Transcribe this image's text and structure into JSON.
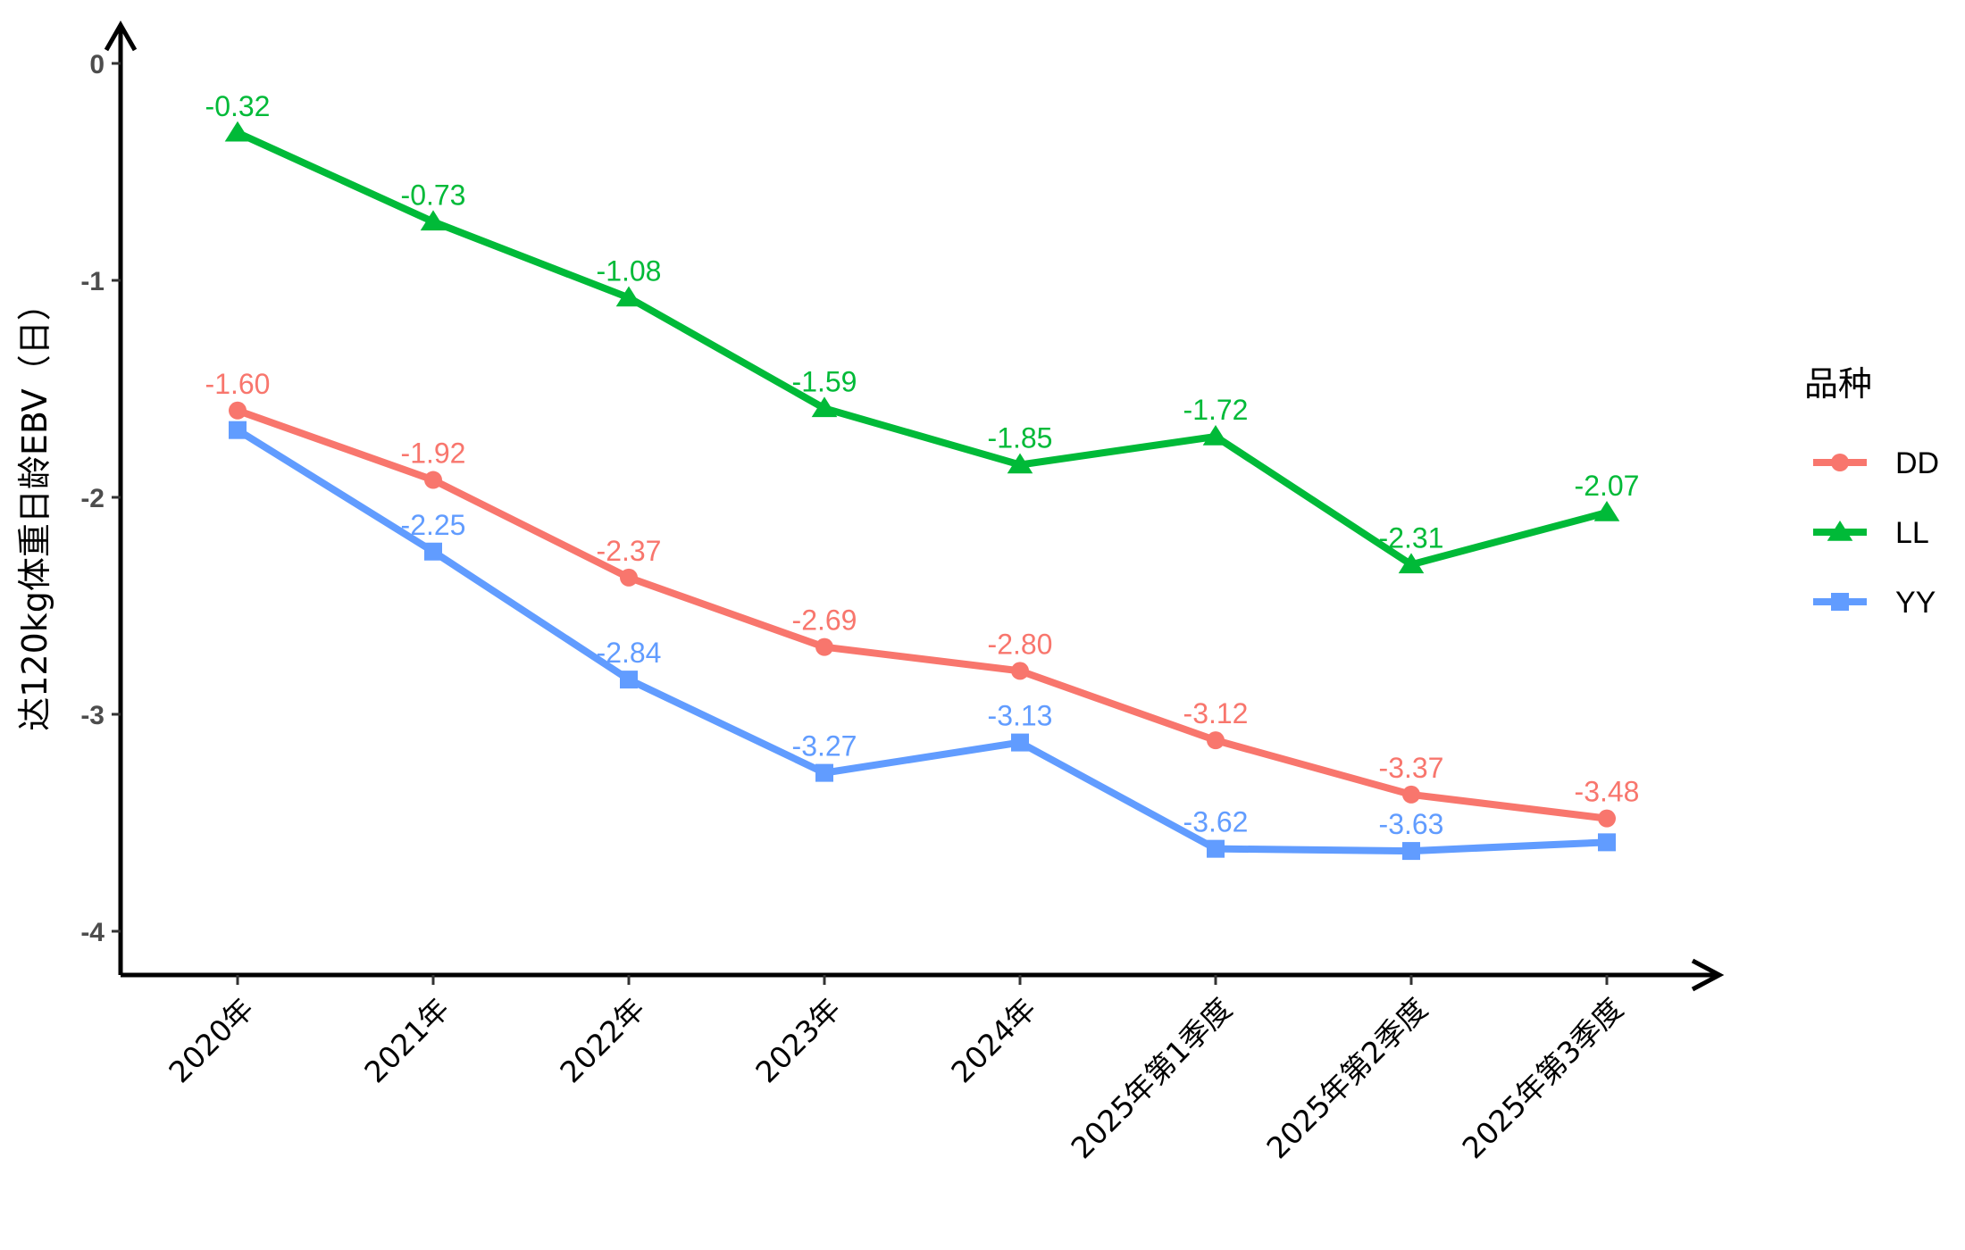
{
  "chart_data": {
    "type": "line",
    "title": "",
    "xlabel": "",
    "ylabel": "达120kg体重日龄EBV（日）",
    "categories": [
      "2020年",
      "2021年",
      "2022年",
      "2023年",
      "2024年",
      "2025年第1季度",
      "2025年第2季度",
      "2025年第3季度"
    ],
    "ylim": [
      -4.2,
      0.2
    ],
    "yticks": [
      0,
      -1,
      -2,
      -3,
      -4
    ],
    "grid": false,
    "legend": {
      "title": "品种",
      "position": "right"
    },
    "series": [
      {
        "name": "DD",
        "color": "#F8766D",
        "marker": "circle",
        "values": [
          -1.6,
          -1.92,
          -2.37,
          -2.69,
          -2.8,
          -3.12,
          -3.37,
          -3.48
        ],
        "labels": [
          "-1.60",
          "-1.92",
          "-2.37",
          "-2.69",
          "-2.80",
          "-3.12",
          "-3.37",
          "-3.48"
        ]
      },
      {
        "name": "LL",
        "color": "#00BA38",
        "marker": "triangle",
        "values": [
          -0.32,
          -0.73,
          -1.08,
          -1.59,
          -1.85,
          -1.72,
          -2.31,
          -2.07
        ],
        "labels": [
          "-0.32",
          "-0.73",
          "-1.08",
          "-1.59",
          "-1.85",
          "-1.72",
          "-2.31",
          "-2.07"
        ]
      },
      {
        "name": "YY",
        "color": "#619CFF",
        "marker": "square",
        "values": [
          -1.69,
          -2.25,
          -2.84,
          -3.27,
          -3.13,
          -3.62,
          -3.63,
          -3.59
        ],
        "labels": [
          "",
          "-2.25",
          "-2.84",
          "-3.27",
          "-3.13",
          "-3.62",
          "-3.63",
          ""
        ]
      }
    ]
  }
}
